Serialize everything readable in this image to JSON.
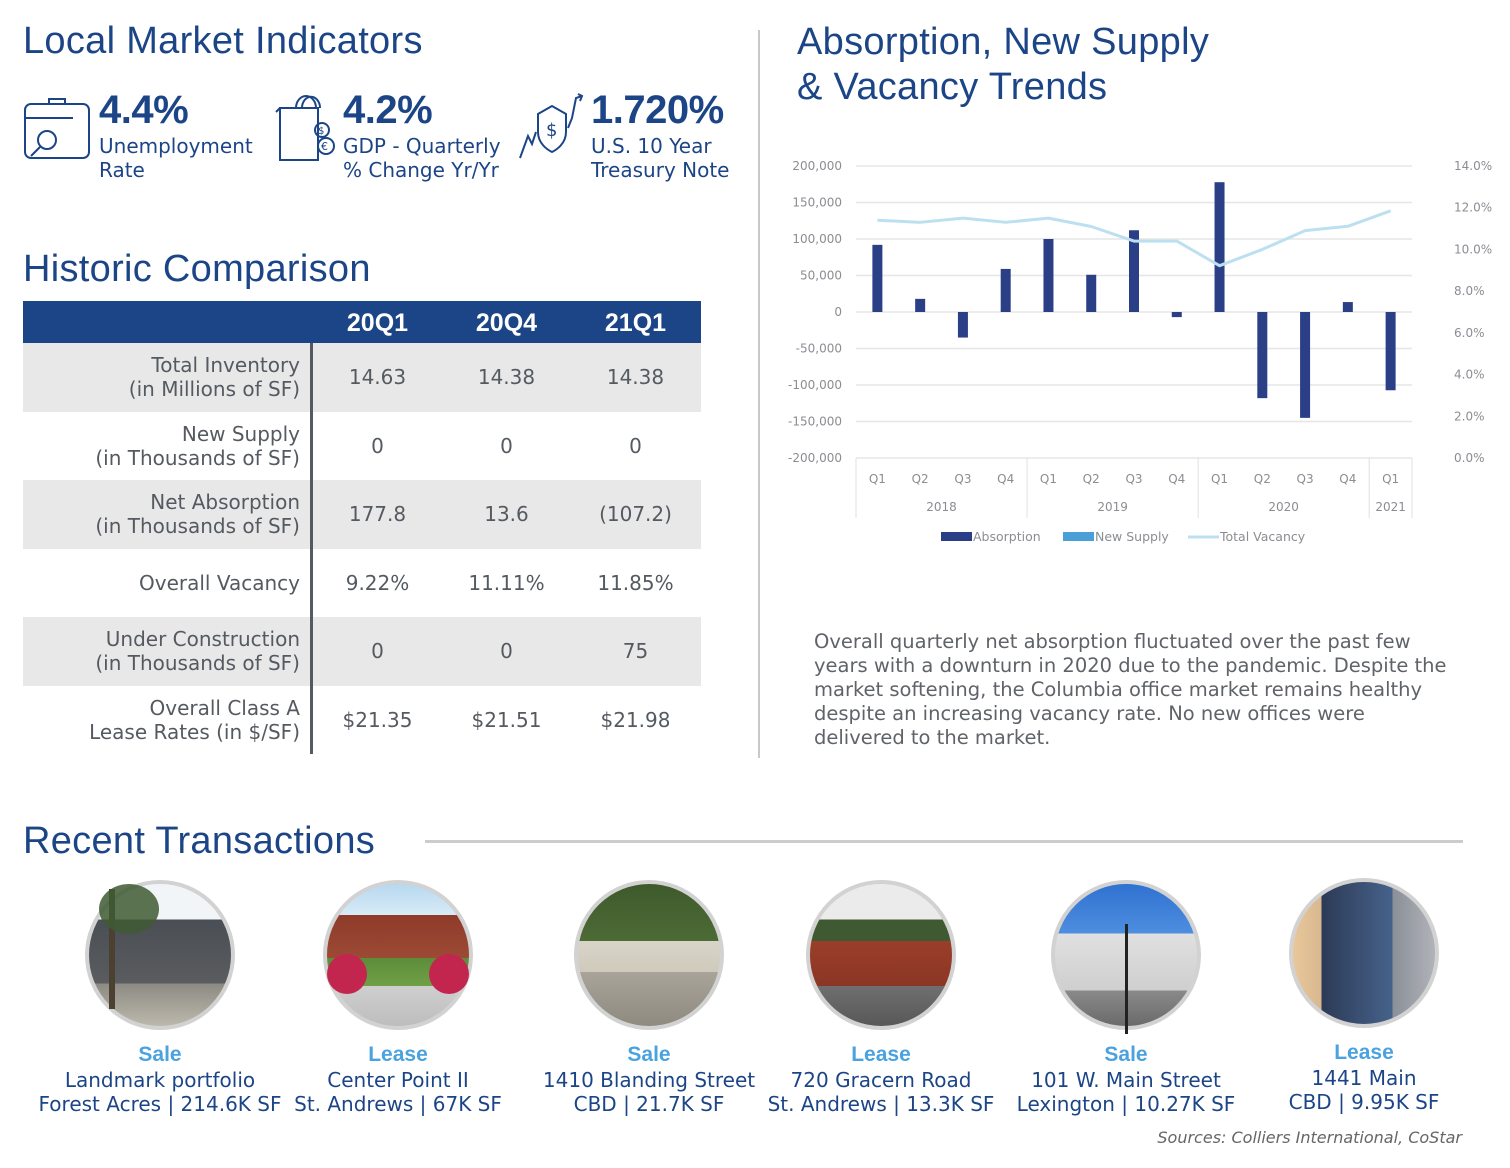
{
  "indicators": {
    "title": "Local Market Indicators",
    "items": [
      {
        "icon": "briefcase-search-icon",
        "value": "4.4%",
        "label_line1": "Unemployment",
        "label_line2": "Rate"
      },
      {
        "icon": "shopping-bag-currency-icon",
        "value": "4.2%",
        "label_line1": "GDP - Quarterly",
        "label_line2": "% Change Yr/Yr"
      },
      {
        "icon": "shield-dollar-trend-icon",
        "value": "1.720%",
        "label_line1": "U.S. 10 Year",
        "label_line2": "Treasury Note"
      }
    ]
  },
  "historic": {
    "title": "Historic Comparison",
    "columns": [
      "20Q1",
      "20Q4",
      "21Q1"
    ],
    "rows": [
      {
        "label_line1": "Total Inventory",
        "label_line2": "(in Millions of SF)",
        "values": [
          "14.63",
          "14.38",
          "14.38"
        ]
      },
      {
        "label_line1": "New Supply",
        "label_line2": "(in Thousands of SF)",
        "values": [
          "0",
          "0",
          "0"
        ]
      },
      {
        "label_line1": "Net Absorption",
        "label_line2": "(in Thousands of SF)",
        "values": [
          "177.8",
          "13.6",
          "(107.2)"
        ]
      },
      {
        "label_line1": "Overall Vacancy",
        "label_line2": "",
        "values": [
          "9.22%",
          "11.11%",
          "11.85%"
        ]
      },
      {
        "label_line1": "Under Construction",
        "label_line2": "(in Thousands of SF)",
        "values": [
          "0",
          "0",
          "75"
        ]
      },
      {
        "label_line1": "Overall Class A",
        "label_line2": "Lease Rates (in $/SF)",
        "values": [
          "$21.35",
          "$21.51",
          "$21.98"
        ]
      }
    ]
  },
  "trends": {
    "title_line1": "Absorption, New Supply",
    "title_line2": "& Vacancy Trends",
    "description": "Overall quarterly net absorption fluctuated over the past few years with a downturn in 2020 due to the pandemic. Despite the market softening, the Columbia office market remains healthy despite an increasing vacancy rate. No new offices were delivered to the market."
  },
  "chart_data": {
    "type": "bar",
    "title": "Absorption, New Supply & Vacancy Trends",
    "categories": [
      "Q1",
      "Q2",
      "Q3",
      "Q4",
      "Q1",
      "Q2",
      "Q3",
      "Q4",
      "Q1",
      "Q2",
      "Q3",
      "Q4",
      "Q1"
    ],
    "year_groups": [
      {
        "label": "2018",
        "count": 4
      },
      {
        "label": "2019",
        "count": 4
      },
      {
        "label": "2020",
        "count": 4
      },
      {
        "label": "2021",
        "count": 1
      }
    ],
    "series": [
      {
        "name": "Absorption",
        "type": "bar",
        "axis": "left",
        "color": "#2b3f87",
        "values": [
          92000,
          18000,
          -35000,
          59000,
          100000,
          51000,
          112000,
          -7000,
          177800,
          -118000,
          -145000,
          13600,
          -107200
        ]
      },
      {
        "name": "New Supply",
        "type": "bar",
        "axis": "left",
        "color": "#4a9fd8",
        "values": [
          0,
          0,
          0,
          0,
          0,
          0,
          0,
          0,
          0,
          0,
          0,
          0,
          0
        ]
      },
      {
        "name": "Total Vacancy",
        "type": "line",
        "axis": "right",
        "color": "#bde0f0",
        "values": [
          11.4,
          11.3,
          11.5,
          11.3,
          11.5,
          11.1,
          10.4,
          10.4,
          9.22,
          10.0,
          10.9,
          11.11,
          11.85
        ]
      }
    ],
    "y_left": {
      "min": -200000,
      "max": 200000,
      "step": 50000,
      "tick_labels": [
        "200,000",
        "150,000",
        "100,000",
        "50,000",
        "0",
        "-50,000",
        "-100,000",
        "-150,000",
        "-200,000"
      ]
    },
    "y_right": {
      "min": 0,
      "max": 14,
      "step": 2,
      "tick_labels": [
        "14.0%",
        "12.0%",
        "10.0%",
        "8.0%",
        "6.0%",
        "4.0%",
        "2.0%",
        "0.0%"
      ]
    },
    "grid": true,
    "legend_position": "bottom"
  },
  "transactions": {
    "title": "Recent Transactions",
    "items": [
      {
        "type": "Sale",
        "name": "Landmark portfolio",
        "meta": "Forest Acres | 214.6K SF",
        "photo": "office-building-photo"
      },
      {
        "type": "Lease",
        "name": "Center Point II",
        "meta": "St. Andrews | 67K SF",
        "photo": "brick-office-walkway-photo"
      },
      {
        "type": "Sale",
        "name": "1410 Blanding Street",
        "meta": "CBD | 21.7K SF",
        "photo": "tree-lined-office-photo"
      },
      {
        "type": "Lease",
        "name": "720 Gracern Road",
        "meta": "St. Andrews | 13.3K SF",
        "photo": "brick-building-parking-photo"
      },
      {
        "type": "Sale",
        "name": "101 W. Main Street",
        "meta": "Lexington | 10.27K SF",
        "photo": "white-building-traffic-light-photo"
      },
      {
        "type": "Lease",
        "name": "1441 Main",
        "meta": "CBD | 9.95K SF",
        "photo": "glass-tower-photo"
      }
    ]
  },
  "sources": "Sources: Colliers International, CoStar"
}
